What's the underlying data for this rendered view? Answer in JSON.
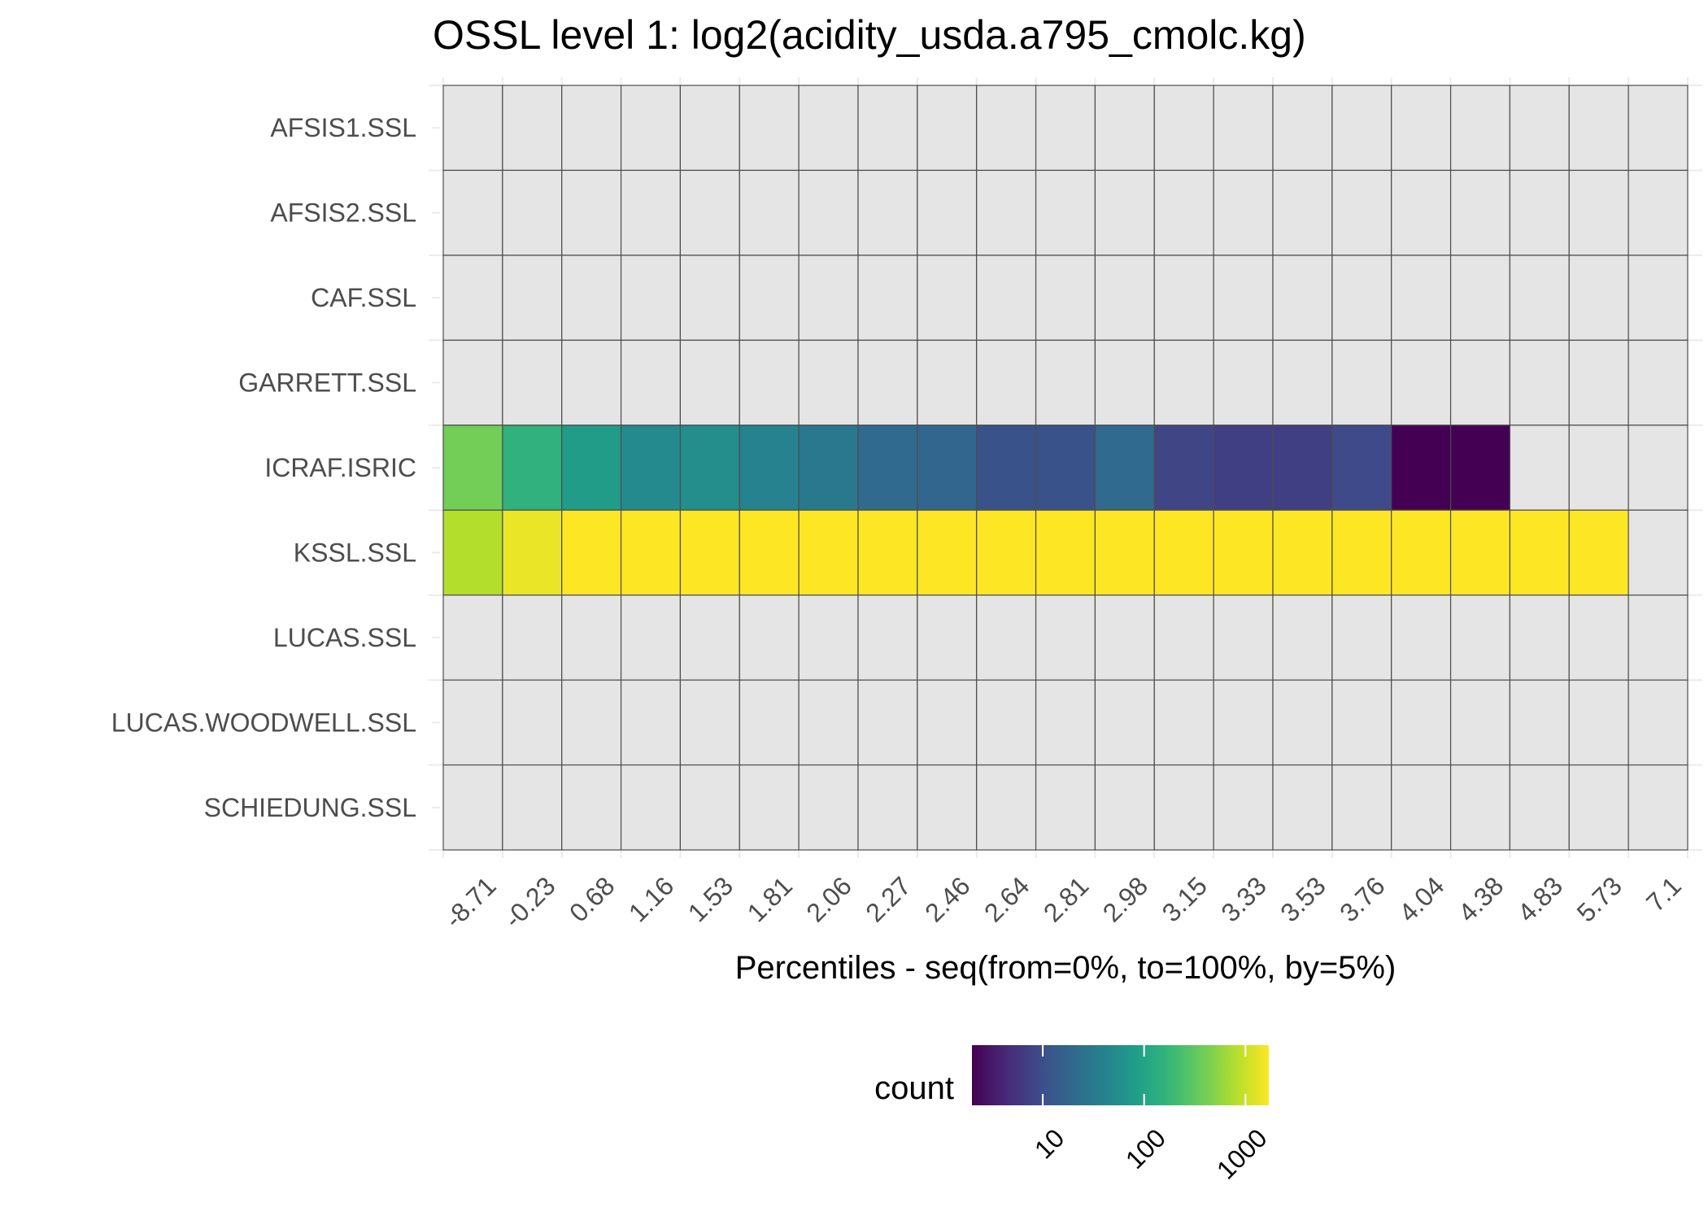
{
  "chart_data": {
    "type": "heatmap",
    "title": "OSSL level 1: log2(acidity_usda.a795_cmolc.kg)",
    "xlabel": "Percentiles - seq(from=0%, to=100%, by=5%)",
    "ylabel": "",
    "x_tick_labels": [
      "-8.71",
      "-0.23",
      "0.68",
      "1.16",
      "1.53",
      "1.81",
      "2.06",
      "2.27",
      "2.46",
      "2.64",
      "2.81",
      "2.98",
      "3.15",
      "3.33",
      "3.53",
      "3.76",
      "4.04",
      "4.38",
      "4.83",
      "5.73",
      "7.1"
    ],
    "rows": [
      "AFSIS1.SSL",
      "AFSIS2.SSL",
      "CAF.SSL",
      "GARRETT.SSL",
      "ICRAF.ISRIC",
      "KSSL.SSL",
      "LUCAS.SSL",
      "LUCAS.WOODWELL.SSL",
      "SCHIEDUNG.SSL"
    ],
    "values": [
      [
        null,
        null,
        null,
        null,
        null,
        null,
        null,
        null,
        null,
        null,
        null,
        null,
        null,
        null,
        null,
        null,
        null,
        null,
        null,
        null,
        null
      ],
      [
        null,
        null,
        null,
        null,
        null,
        null,
        null,
        null,
        null,
        null,
        null,
        null,
        null,
        null,
        null,
        null,
        null,
        null,
        null,
        null,
        null
      ],
      [
        null,
        null,
        null,
        null,
        null,
        null,
        null,
        null,
        null,
        null,
        null,
        null,
        null,
        null,
        null,
        null,
        null,
        null,
        null,
        null,
        null
      ],
      [
        null,
        null,
        null,
        null,
        null,
        null,
        null,
        null,
        null,
        null,
        null,
        null,
        null,
        null,
        null,
        null,
        null,
        null,
        null,
        null,
        null
      ],
      [
        400,
        150,
        80,
        50,
        55,
        40,
        30,
        20,
        18,
        11,
        11,
        20,
        8,
        7,
        7,
        9,
        2,
        2,
        null,
        null,
        null
      ],
      [
        800,
        1400,
        1700,
        1700,
        1700,
        1700,
        1700,
        1700,
        1700,
        1700,
        1700,
        1700,
        1700,
        1700,
        1700,
        1700,
        1700,
        1700,
        1700,
        1700,
        null
      ],
      [
        null,
        null,
        null,
        null,
        null,
        null,
        null,
        null,
        null,
        null,
        null,
        null,
        null,
        null,
        null,
        null,
        null,
        null,
        null,
        null,
        null
      ],
      [
        null,
        null,
        null,
        null,
        null,
        null,
        null,
        null,
        null,
        null,
        null,
        null,
        null,
        null,
        null,
        null,
        null,
        null,
        null,
        null,
        null
      ],
      [
        null,
        null,
        null,
        null,
        null,
        null,
        null,
        null,
        null,
        null,
        null,
        null,
        null,
        null,
        null,
        null,
        null,
        null,
        null,
        null,
        null
      ]
    ],
    "missing_color": "#e5e5e5",
    "colorscale": "viridis",
    "color_scale_log10": true,
    "color_range": [
      2,
      1700
    ],
    "legend": {
      "title": "count",
      "ticks": [
        10,
        100,
        1000
      ],
      "tick_labels": [
        "10",
        "100",
        "1000"
      ],
      "position": "bottom"
    },
    "grid": true
  }
}
